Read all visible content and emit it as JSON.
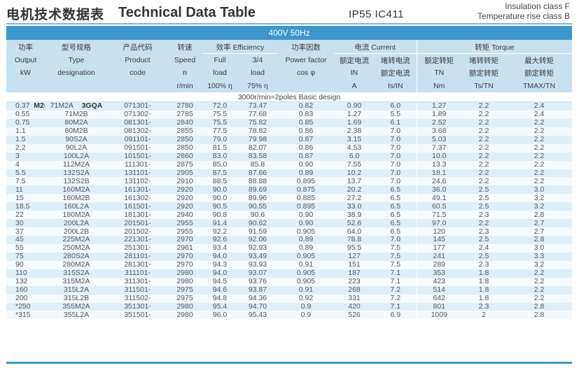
{
  "header": {
    "title_cn": "电机技术数据表",
    "title_en": "Technical Data Table",
    "protection": "IP55  IC411",
    "insulation": "Insulation class F",
    "temperature": "Temperature rise class B"
  },
  "table": {
    "voltage": "400V 50Hz",
    "section_label": "3000r/min=2poles Basic design",
    "frame_left": "M2QA",
    "frame_right": "3GQA",
    "headers": {
      "power": [
        "功率",
        "Output",
        "kW"
      ],
      "type": [
        "型号规格",
        "Type",
        "designation"
      ],
      "code": [
        "产品代码",
        "Product",
        "code"
      ],
      "speed": [
        "转速",
        "Speed",
        "n",
        "r/min"
      ],
      "efficiency_group": "效率 Efficiency",
      "eff_full": [
        "Full",
        "load",
        "100% η"
      ],
      "eff_34": [
        "3/4",
        "load",
        "75% η"
      ],
      "pf": [
        "功率因数",
        "Power factor",
        "cos φ"
      ],
      "current_group": "电流 Current",
      "in": [
        "额定电流",
        "IN",
        "A"
      ],
      "is_in": [
        "堵转电流",
        "额定电流",
        "Is/IN"
      ],
      "torque_group": "转矩 Torque",
      "tn": [
        "额定转矩",
        "TN",
        "Nm"
      ],
      "ts_tn": [
        "堵转转矩",
        "额定转矩",
        "Ts/TN"
      ],
      "tmax_tn": [
        "最大转矩",
        "额定转矩",
        "TMAX/TN"
      ]
    },
    "rows": [
      [
        "0.37",
        "71M2A",
        "071301-",
        "2780",
        "72.0",
        "73.47",
        "0.82",
        "0.90",
        "6.0",
        "1.27",
        "2.2",
        "2.4"
      ],
      [
        "0.55",
        "71M2B",
        "071302-",
        "2785",
        "75.5",
        "77.68",
        "0.83",
        "1.27",
        "5.5",
        "1.89",
        "2.2",
        "2.4"
      ],
      [
        "0.75",
        "80M2A",
        "081301-",
        "2840",
        "75.5",
        "75.82",
        "0.85",
        "1.69",
        "6.1",
        "2.52",
        "2.2",
        "2.2"
      ],
      [
        "1.1",
        "80M2B",
        "081302-",
        "2855",
        "77.5",
        "78.82",
        "0.86",
        "2.38",
        "7.0",
        "3.68",
        "2.2",
        "2.2"
      ],
      [
        "1.5",
        "90S2A",
        "091101-",
        "2850",
        "79.0",
        "79.98",
        "0.87",
        "3.15",
        "7.0",
        "5.03",
        "2.2",
        "2.2"
      ],
      [
        "2.2",
        "90L2A",
        "091501-",
        "2850",
        "81.5",
        "82.07",
        "0.86",
        "4.53",
        "7.0",
        "7.37",
        "2.2",
        "2.2"
      ],
      [
        "3",
        "100L2A",
        "101501-",
        "2860",
        "83.0",
        "83.58",
        "0.87",
        "6.0",
        "7.0",
        "10.0",
        "2.2",
        "2.2"
      ],
      [
        "4",
        "112M2A",
        "111301-",
        "2875",
        "85.0",
        "85.8",
        "0.90",
        "7.55",
        "7.0",
        "13.3",
        "2.2",
        "2.2"
      ],
      [
        "5.5",
        "132S2A",
        "131101-",
        "2905",
        "87.5",
        "87.66",
        "0.89",
        "10.2",
        "7.0",
        "18.1",
        "2.2",
        "2.2"
      ],
      [
        "7.5",
        "132S2B",
        "131102-",
        "2910",
        "88.5",
        "88.88",
        "0.895",
        "13.7",
        "7.0",
        "24.6",
        "2.2",
        "2.2"
      ],
      [
        "11",
        "160M2A",
        "161301-",
        "2920",
        "90.0",
        "89.69",
        "0.875",
        "20.2",
        "6.5",
        "36.0",
        "2.5",
        "3.0"
      ],
      [
        "15",
        "160M2B",
        "161302-",
        "2920",
        "90.0",
        "89.96",
        "0.885",
        "27.2",
        "6.5",
        "49.1",
        "2.5",
        "3.2"
      ],
      [
        "18.5",
        "160L2A",
        "161501-",
        "2920",
        "90.5",
        "90.55",
        "0.895",
        "33.0",
        "6.5",
        "60.5",
        "2.5",
        "3.2"
      ],
      [
        "22",
        "180M2A",
        "181301-",
        "2940",
        "90.8",
        "90.6",
        "0.90",
        "38.9",
        "6.5",
        "71.5",
        "2.3",
        "2.8"
      ],
      [
        "30",
        "200L2A",
        "201501-",
        "2955",
        "91.4",
        "90.62",
        "0.90",
        "52.6",
        "6.5",
        "97.0",
        "2.2",
        "2.7"
      ],
      [
        "37",
        "200L2B",
        "201502-",
        "2955",
        "92.2",
        "91.59",
        "0.905",
        "64.0",
        "6.5",
        "120",
        "2.3",
        "2.7"
      ],
      [
        "45",
        "225M2A",
        "221301-",
        "2970",
        "92.6",
        "92.06",
        "0.89",
        "78.8",
        "7.0",
        "145",
        "2.5",
        "2.8"
      ],
      [
        "55",
        "250M2A",
        "251301-",
        "2961",
        "93.4",
        "92.93",
        "0.89",
        "95.5",
        "7.5",
        "177",
        "2.4",
        "3.0"
      ],
      [
        "75",
        "280S2A",
        "281101-",
        "2970",
        "94.0",
        "93.49",
        "0.905",
        "127",
        "7.5",
        "241",
        "2.5",
        "3.3"
      ],
      [
        "90",
        "280M2A",
        "281301-",
        "2970",
        "94.3",
        "93.93",
        "0.91",
        "151",
        "7.5",
        "289",
        "2.3",
        "3.2"
      ],
      [
        "110",
        "315S2A",
        "311101-",
        "2980",
        "94.0",
        "93.07",
        "0.905",
        "187",
        "7.1",
        "353",
        "1.8",
        "2.2"
      ],
      [
        "132",
        "315M2A",
        "311301-",
        "2980",
        "94.5",
        "93.76",
        "0.905",
        "223",
        "7.1",
        "423",
        "1.8",
        "2.2"
      ],
      [
        "160",
        "315L2A",
        "311501-",
        "2975",
        "94.6",
        "93.87",
        "0.91",
        "268",
        "7.2",
        "514",
        "1.8",
        "2.2"
      ],
      [
        "200",
        "315L2B",
        "311502-",
        "2975",
        "94.8",
        "94.36",
        "0.92",
        "331",
        "7.2",
        "642",
        "1.8",
        "2.2"
      ],
      [
        "*250",
        "355M2A",
        "351301-",
        "2980",
        "95.4",
        "94.70",
        "0.9",
        "420",
        "7.1",
        "801",
        "2.3",
        "2.8"
      ],
      [
        "*315",
        "355L2A",
        "351501-",
        "2980",
        "96.0",
        "95.43",
        "0.9",
        "526",
        "6.9",
        "1009",
        "2",
        "2.8"
      ]
    ]
  }
}
